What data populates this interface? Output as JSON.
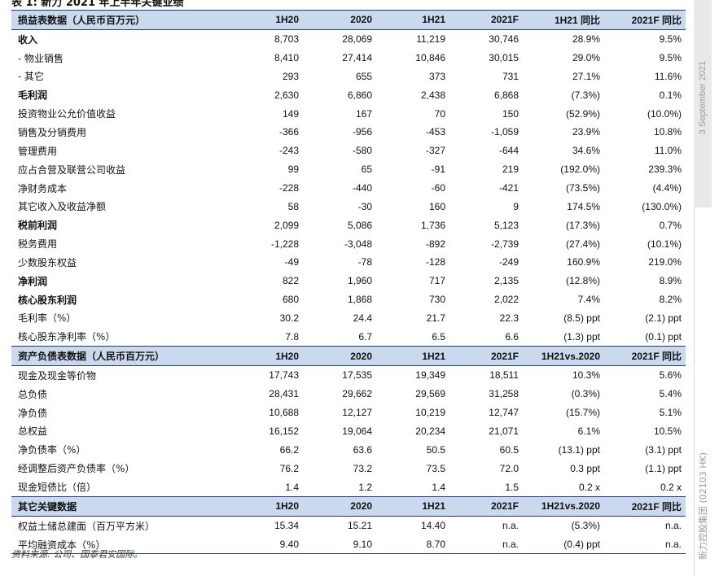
{
  "caption": "表 1: 新力 2021 年上半年关键业绩",
  "sections": [
    {
      "header": [
        "损益表数据（人民币百万元）",
        "1H20",
        "2020",
        "1H21",
        "2021F",
        "1H21 同比",
        "2021F 同比"
      ],
      "rows": [
        {
          "label": "收入",
          "bold": true,
          "values": [
            "8,703",
            "28,069",
            "11,219",
            "30,746",
            "28.9%",
            "9.5%"
          ]
        },
        {
          "label": "- 物业销售",
          "bold": false,
          "values": [
            "8,410",
            "27,414",
            "10,846",
            "30,015",
            "29.0%",
            "9.5%"
          ]
        },
        {
          "label": "- 其它",
          "bold": false,
          "values": [
            "293",
            "655",
            "373",
            "731",
            "27.1%",
            "11.6%"
          ]
        },
        {
          "label": "毛利润",
          "bold": true,
          "values": [
            "2,630",
            "6,860",
            "2,438",
            "6,868",
            "(7.3%)",
            "0.1%"
          ]
        },
        {
          "label": "投资物业公允价值收益",
          "bold": false,
          "values": [
            "149",
            "167",
            "70",
            "150",
            "(52.9%)",
            "(10.0%)"
          ]
        },
        {
          "label": "销售及分销费用",
          "bold": false,
          "values": [
            "-366",
            "-956",
            "-453",
            "-1,059",
            "23.9%",
            "10.8%"
          ]
        },
        {
          "label": "管理费用",
          "bold": false,
          "values": [
            "-243",
            "-580",
            "-327",
            "-644",
            "34.6%",
            "11.0%"
          ]
        },
        {
          "label": "应占合营及联营公司收益",
          "bold": false,
          "values": [
            "99",
            "65",
            "-91",
            "219",
            "(192.0%)",
            "239.3%"
          ]
        },
        {
          "label": "净财务成本",
          "bold": false,
          "values": [
            "-228",
            "-440",
            "-60",
            "-421",
            "(73.5%)",
            "(4.4%)"
          ]
        },
        {
          "label": "其它收入及收益净额",
          "bold": false,
          "values": [
            "58",
            "-30",
            "160",
            "9",
            "174.5%",
            "(130.0%)"
          ]
        },
        {
          "label": "税前利润",
          "bold": true,
          "values": [
            "2,099",
            "5,086",
            "1,736",
            "5,123",
            "(17.3%)",
            "0.7%"
          ]
        },
        {
          "label": "税务费用",
          "bold": false,
          "values": [
            "-1,228",
            "-3,048",
            "-892",
            "-2,739",
            "(27.4%)",
            "(10.1%)"
          ]
        },
        {
          "label": "少数股东权益",
          "bold": false,
          "values": [
            "-49",
            "-78",
            "-128",
            "-249",
            "160.9%",
            "219.0%"
          ]
        },
        {
          "label": "净利润",
          "bold": true,
          "values": [
            "822",
            "1,960",
            "717",
            "2,135",
            "(12.8%)",
            "8.9%"
          ]
        },
        {
          "label": "核心股东利润",
          "bold": true,
          "values": [
            "680",
            "1,868",
            "730",
            "2,022",
            "7.4%",
            "8.2%"
          ]
        },
        {
          "label": "毛利率（%）",
          "bold": false,
          "values": [
            "30.2",
            "24.4",
            "21.7",
            "22.3",
            "(8.5) ppt",
            "(2.1) ppt"
          ]
        },
        {
          "label": "核心股东净利率（%）",
          "bold": false,
          "values": [
            "7.8",
            "6.7",
            "6.5",
            "6.6",
            "(1.3) ppt",
            "(0.1) ppt"
          ]
        }
      ]
    },
    {
      "header": [
        "资产负债表数据（人民币百万元）",
        "1H20",
        "2020",
        "1H21",
        "2021F",
        "1H21vs.2020",
        "2021F 同比"
      ],
      "rows": [
        {
          "label": "现金及现金等价物",
          "bold": false,
          "values": [
            "17,743",
            "17,535",
            "19,349",
            "18,511",
            "10.3%",
            "5.6%"
          ]
        },
        {
          "label": "总负债",
          "bold": false,
          "values": [
            "28,431",
            "29,662",
            "29,569",
            "31,258",
            "(0.3%)",
            "5.4%"
          ]
        },
        {
          "label": "净负债",
          "bold": false,
          "values": [
            "10,688",
            "12,127",
            "10,219",
            "12,747",
            "(15.7%)",
            "5.1%"
          ]
        },
        {
          "label": "总权益",
          "bold": false,
          "values": [
            "16,152",
            "19,064",
            "20,234",
            "21,071",
            "6.1%",
            "10.5%"
          ]
        },
        {
          "label": "净负债率（%）",
          "bold": false,
          "values": [
            "66.2",
            "63.6",
            "50.5",
            "60.5",
            "(13.1) ppt",
            "(3.1) ppt"
          ]
        },
        {
          "label": "经调整后资产负债率（%）",
          "bold": false,
          "values": [
            "76.2",
            "73.2",
            "73.5",
            "72.0",
            "0.3 ppt",
            "(1.1) ppt"
          ]
        },
        {
          "label": "现金短债比（倍）",
          "bold": false,
          "values": [
            "1.4",
            "1.2",
            "1.4",
            "1.5",
            "0.2 x",
            "0.2 x"
          ]
        }
      ]
    },
    {
      "header": [
        "其它关键数据",
        "1H20",
        "2020",
        "1H21",
        "2021F",
        "1H21vs.2020",
        "2021F 同比"
      ],
      "rows": [
        {
          "label": "权益土储总建面（百万平方米）",
          "bold": false,
          "values": [
            "15.34",
            "15.21",
            "14.40",
            "n.a.",
            "(5.3%)",
            "n.a."
          ]
        },
        {
          "label": "平均融资成本（%）",
          "bold": false,
          "values": [
            "9.40",
            "9.10",
            "8.70",
            "n.a.",
            "(0.4) ppt",
            "n.a."
          ]
        }
      ]
    }
  ],
  "source": "资料来源: 公司、国泰君安国际。",
  "side": {
    "date": "3 September 2021",
    "company": "新力控股集团 (02103 HK)"
  }
}
